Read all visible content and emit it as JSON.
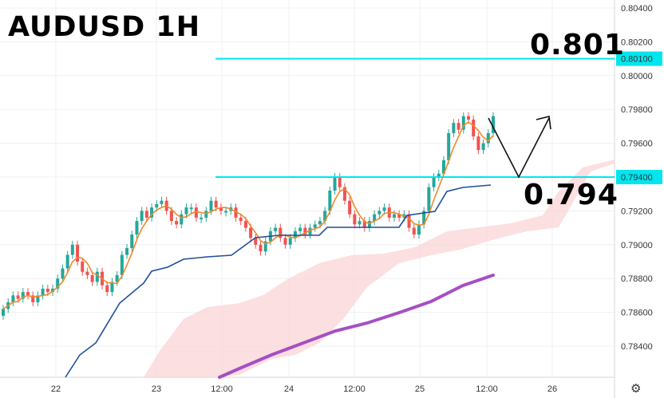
{
  "chart_data": {
    "type": "candlestick",
    "title": "AUDUSD 1H",
    "price_axis": {
      "ticks": [
        "0.80400",
        "0.80200",
        "0.80000",
        "0.79800",
        "0.79600",
        "0.79400",
        "0.79200",
        "0.79000",
        "0.78800",
        "0.78600",
        "0.78400"
      ],
      "highlighted": [
        "0.80100",
        "0.79400"
      ],
      "ylim": [
        0.783,
        0.8042
      ]
    },
    "time_axis": {
      "ticks": [
        "22",
        "23",
        "12:00",
        "24",
        "12:00",
        "25",
        "12:00",
        "26"
      ]
    },
    "levels": [
      {
        "label": "0.801",
        "price": 0.801,
        "color": "#00e5ee"
      },
      {
        "label": "0.794",
        "price": 0.794,
        "color": "#00e5ee"
      }
    ],
    "colors": {
      "up_candle": "#26a69a",
      "down_candle": "#ef5350",
      "tenkan": "#f0892a",
      "kijun": "#1f4e9a",
      "ma": "#a64fc4",
      "cloud": "#fbd4d6",
      "level_line": "#00e5ee",
      "axis_highlight_bg": "#00e5ee"
    },
    "projection": "down to 0.794 then up toward 0.798",
    "indicators": [
      "candles",
      "tenkan",
      "kijun",
      "ichimoku cloud",
      "moving average"
    ]
  },
  "ui": {
    "settings_icon": "gear-icon"
  }
}
